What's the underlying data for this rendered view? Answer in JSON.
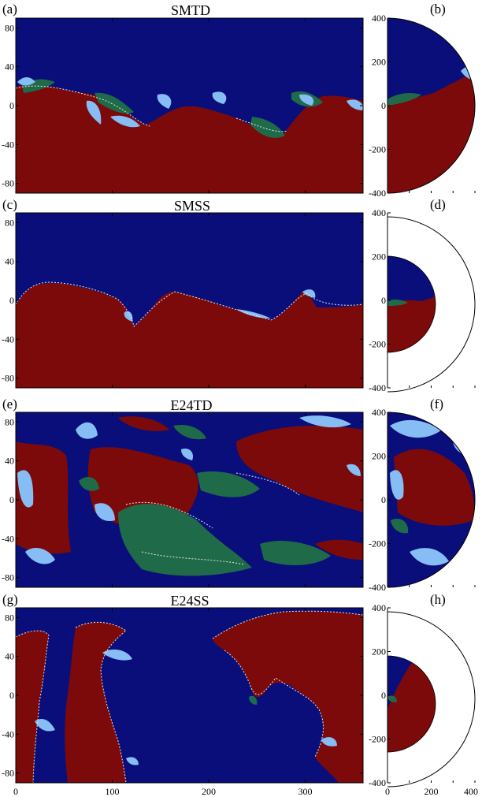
{
  "chart_data": [
    {
      "type": "heatmap",
      "panel_label": "(a)",
      "title": "SMTD",
      "view": "map",
      "x_ticks": [],
      "y_ticks": [
        "80",
        "40",
        "0",
        "-40",
        "-80"
      ],
      "xlim": [
        0,
        360
      ],
      "ylim": [
        -90,
        90
      ],
      "mix": "low"
    },
    {
      "type": "heatmap",
      "panel_label": "(b)",
      "title": "",
      "view": "meridional",
      "outer_radius": 400,
      "inner_radius": 400,
      "y_ticks": [
        "400",
        "200",
        "0",
        "-200",
        "-400"
      ],
      "x_ticks": []
    },
    {
      "type": "heatmap",
      "panel_label": "(c)",
      "title": "SMSS",
      "view": "map",
      "x_ticks": [],
      "y_ticks": [
        "80",
        "40",
        "0",
        "-40",
        "-80"
      ],
      "xlim": [
        0,
        360
      ],
      "ylim": [
        -90,
        90
      ],
      "mix": "none"
    },
    {
      "type": "heatmap",
      "panel_label": "(d)",
      "title": "",
      "view": "meridional",
      "outer_radius": 400,
      "inner_radius": 220,
      "y_ticks": [
        "400",
        "200",
        "0",
        "-200",
        "-400"
      ],
      "x_ticks": []
    },
    {
      "type": "heatmap",
      "panel_label": "(e)",
      "title": "E24TD",
      "view": "map",
      "x_ticks": [],
      "y_ticks": [
        "80",
        "40",
        "0",
        "-40",
        "-80"
      ],
      "xlim": [
        0,
        360
      ],
      "ylim": [
        -90,
        90
      ],
      "mix": "high"
    },
    {
      "type": "heatmap",
      "panel_label": "(f)",
      "title": "",
      "view": "meridional",
      "outer_radius": 400,
      "inner_radius": 400,
      "y_ticks": [
        "400",
        "200",
        "0",
        "-200",
        "-400"
      ],
      "x_ticks": []
    },
    {
      "type": "heatmap",
      "panel_label": "(g)",
      "title": "E24SS",
      "view": "map",
      "x_ticks": [
        "0",
        "100",
        "200",
        "300"
      ],
      "y_ticks": [
        "80",
        "40",
        "0",
        "-40",
        "-80"
      ],
      "xlim": [
        0,
        360
      ],
      "ylim": [
        -90,
        90
      ],
      "mix": "none"
    },
    {
      "type": "heatmap",
      "panel_label": "(h)",
      "title": "",
      "view": "meridional",
      "outer_radius": 400,
      "inner_radius": 220,
      "y_ticks": [
        "400",
        "200",
        "0",
        "-200",
        "-400"
      ],
      "x_ticks": [
        "0",
        "200",
        "400"
      ]
    }
  ],
  "colors": {
    "north_tracer": "#0a0e7a",
    "south_tracer": "#7d0a0a",
    "mixed_green": "#1e6a49",
    "light_blue": "#86bdf5",
    "contour": "#e8e8e8"
  }
}
